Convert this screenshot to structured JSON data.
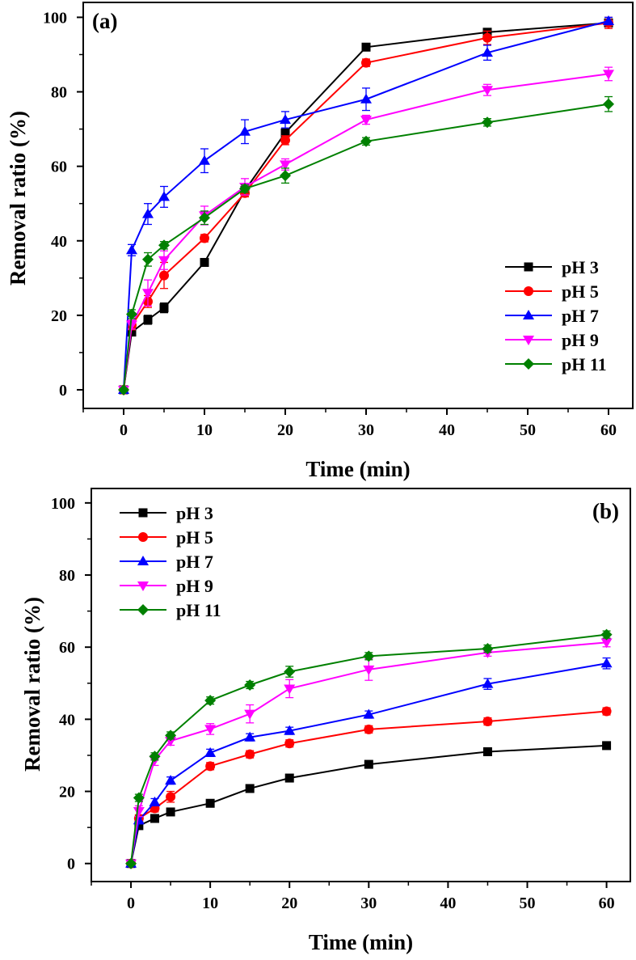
{
  "chart_data": [
    {
      "panel_label": "(a)",
      "type": "line",
      "xlabel": "Time (min)",
      "ylabel": "Removal ratio (%)",
      "xlim": [
        -5,
        63
      ],
      "ylim": [
        -5,
        104
      ],
      "xticks": [
        0,
        10,
        20,
        30,
        40,
        50,
        60
      ],
      "yticks": [
        0,
        20,
        40,
        60,
        80,
        100
      ],
      "x": [
        0,
        1,
        3,
        5,
        10,
        15,
        20,
        30,
        45,
        60
      ],
      "legend_position": "bottom-right",
      "series": [
        {
          "name": "pH 3",
          "color": "#000000",
          "marker": "square",
          "values": [
            0,
            15.5,
            18.8,
            22,
            34.2,
            53.5,
            69,
            92,
            96,
            98.5
          ],
          "errors": [
            0,
            1,
            1.2,
            1.3,
            1,
            1,
            1,
            1,
            1,
            1
          ]
        },
        {
          "name": "pH 5",
          "color": "#ff0000",
          "marker": "circle",
          "values": [
            0,
            17.3,
            23.7,
            30.7,
            40.7,
            52.8,
            67,
            87.8,
            94.5,
            98.5
          ],
          "errors": [
            0,
            1.2,
            1.6,
            3.5,
            1,
            1,
            1.2,
            1,
            1.8,
            1.5
          ]
        },
        {
          "name": "pH 7",
          "color": "#0000ff",
          "marker": "triangle-up",
          "values": [
            0,
            37.5,
            47.2,
            51.8,
            61.5,
            69.3,
            72.5,
            78,
            90.5,
            99
          ],
          "errors": [
            0,
            1.5,
            2.8,
            2.8,
            3.2,
            3.2,
            2.2,
            3,
            2,
            1
          ]
        },
        {
          "name": "pH 9",
          "color": "#ff00ff",
          "marker": "triangle-down",
          "values": [
            0,
            17.5,
            26,
            34.8,
            46.8,
            54.5,
            60.5,
            72.5,
            80.5,
            84.8
          ],
          "errors": [
            0,
            1.2,
            3.5,
            2.5,
            2.5,
            2.2,
            1.5,
            1.2,
            1.5,
            1.8
          ]
        },
        {
          "name": "pH 11",
          "color": "#008000",
          "marker": "diamond",
          "values": [
            0,
            20.3,
            35,
            38.8,
            46.2,
            54,
            57.5,
            66.7,
            71.8,
            76.7
          ],
          "errors": [
            0,
            1.2,
            1.8,
            1,
            1.8,
            1,
            2,
            1,
            1,
            2
          ]
        }
      ]
    },
    {
      "panel_label": "(b)",
      "type": "line",
      "xlabel": "Time (min)",
      "ylabel": "Removal ratio (%)",
      "xlim": [
        -5,
        63
      ],
      "ylim": [
        -5,
        104
      ],
      "xticks": [
        0,
        10,
        20,
        30,
        40,
        50,
        60
      ],
      "yticks": [
        0,
        20,
        40,
        60,
        80,
        100
      ],
      "x": [
        0,
        1,
        3,
        5,
        10,
        15,
        20,
        30,
        45,
        60
      ],
      "legend_position": "top-left",
      "series": [
        {
          "name": "pH 3",
          "color": "#000000",
          "marker": "square",
          "values": [
            0,
            10.5,
            12.5,
            14.3,
            16.7,
            20.8,
            23.7,
            27.5,
            31,
            32.7
          ],
          "errors": [
            0,
            0.8,
            0.8,
            0.8,
            0.8,
            0.8,
            0.8,
            0.8,
            0.8,
            0.8
          ]
        },
        {
          "name": "pH 5",
          "color": "#ff0000",
          "marker": "circle",
          "values": [
            0,
            12.5,
            15.3,
            18.5,
            27,
            30.3,
            33.3,
            37.2,
            39.4,
            42.2
          ],
          "errors": [
            0,
            1,
            1,
            1.5,
            1,
            1,
            1,
            1,
            1,
            1
          ]
        },
        {
          "name": "pH 7",
          "color": "#0000ff",
          "marker": "triangle-up",
          "values": [
            0,
            12,
            17,
            23,
            30.7,
            35,
            36.8,
            41.3,
            49.8,
            55.5
          ],
          "errors": [
            0,
            1,
            1,
            1,
            1,
            1,
            1,
            1,
            1.5,
            1.5
          ]
        },
        {
          "name": "pH 9",
          "color": "#ff00ff",
          "marker": "triangle-down",
          "values": [
            0,
            14.5,
            28.7,
            34,
            37.3,
            41.5,
            48.5,
            53.8,
            58.5,
            61.3
          ],
          "errors": [
            0,
            1.5,
            1.5,
            1.2,
            1.5,
            2.5,
            2.5,
            3,
            1,
            1.2
          ]
        },
        {
          "name": "pH 11",
          "color": "#008000",
          "marker": "diamond",
          "values": [
            0,
            18.2,
            29.7,
            35.5,
            45.2,
            49.5,
            53.2,
            57.5,
            59.6,
            63.5
          ],
          "errors": [
            0,
            1,
            1,
            1,
            1,
            1,
            1.5,
            1,
            1,
            1
          ]
        }
      ]
    }
  ]
}
